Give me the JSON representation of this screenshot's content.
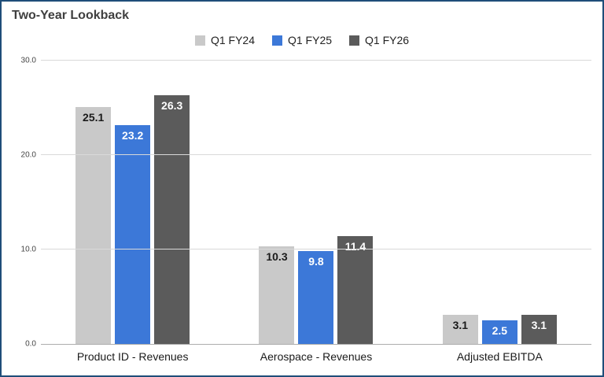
{
  "chart_data": {
    "type": "bar",
    "title": "Two-Year Lookback",
    "categories": [
      "Product ID - Revenues",
      "Aerospace - Revenues",
      "Adjusted EBITDA"
    ],
    "series": [
      {
        "name": "Q1 FY24",
        "color": "#c9c9c9",
        "label_color": "#1a1a1a",
        "values": [
          25.1,
          10.3,
          3.1
        ]
      },
      {
        "name": "Q1 FY25",
        "color": "#3c78d8",
        "label_color": "#ffffff",
        "values": [
          23.2,
          9.8,
          2.5
        ]
      },
      {
        "name": "Q1 FY26",
        "color": "#5b5b5b",
        "label_color": "#ffffff",
        "values": [
          26.3,
          11.4,
          3.1
        ]
      }
    ],
    "ylim": [
      0,
      30
    ],
    "ytick_step": 10,
    "ytick_labels": [
      "0.0",
      "10.0",
      "20.0",
      "30.0"
    ],
    "grid": true,
    "legend_position": "top",
    "xlabel": "",
    "ylabel": ""
  },
  "colors": {
    "frame_border": "#1f4e79",
    "gridline": "#d9d9d9",
    "axis_line": "#adadad",
    "title_text": "#3f3f3f"
  }
}
